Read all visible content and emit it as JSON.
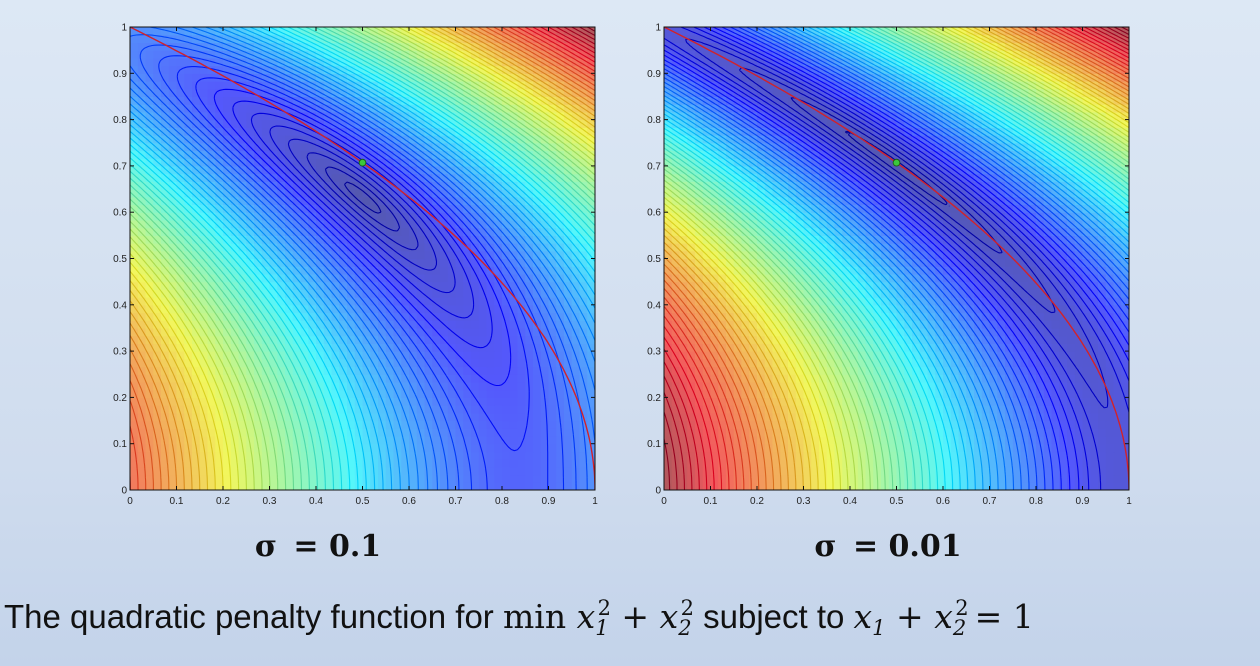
{
  "chart_data": [
    {
      "type": "contour",
      "title": "",
      "label_prefix": "σ",
      "label_value": "= 0.1",
      "sigma": 0.1,
      "xlim": [
        0,
        1
      ],
      "ylim": [
        0,
        1
      ],
      "x_ticks": [
        "0",
        "0.1",
        "0.2",
        "0.3",
        "0.4",
        "0.5",
        "0.6",
        "0.7",
        "0.8",
        "0.9",
        "1"
      ],
      "y_ticks": [
        "0",
        "0.1",
        "0.2",
        "0.3",
        "0.4",
        "0.5",
        "0.6",
        "0.7",
        "0.8",
        "0.9",
        "1"
      ],
      "constraint_color": "#d2222a",
      "optimum": {
        "x": 0.5,
        "y": 0.707
      },
      "optimum_color": "#3cc83c"
    },
    {
      "type": "contour",
      "title": "",
      "label_prefix": "σ",
      "label_value": "= 0.01",
      "sigma": 0.01,
      "xlim": [
        0,
        1
      ],
      "ylim": [
        0,
        1
      ],
      "x_ticks": [
        "0",
        "0.1",
        "0.2",
        "0.3",
        "0.4",
        "0.5",
        "0.6",
        "0.7",
        "0.8",
        "0.9",
        "1"
      ],
      "y_ticks": [
        "0",
        "0.1",
        "0.2",
        "0.3",
        "0.4",
        "0.5",
        "0.6",
        "0.7",
        "0.8",
        "0.9",
        "1"
      ],
      "constraint_color": "#d2222a",
      "optimum": {
        "x": 0.5,
        "y": 0.707
      },
      "optimum_color": "#3cc83c"
    }
  ],
  "caption": {
    "prefix": "The quadratic penalty function for ",
    "objective_op": "min ",
    "middle": " subject to ",
    "constraint_rhs": "= 1"
  }
}
